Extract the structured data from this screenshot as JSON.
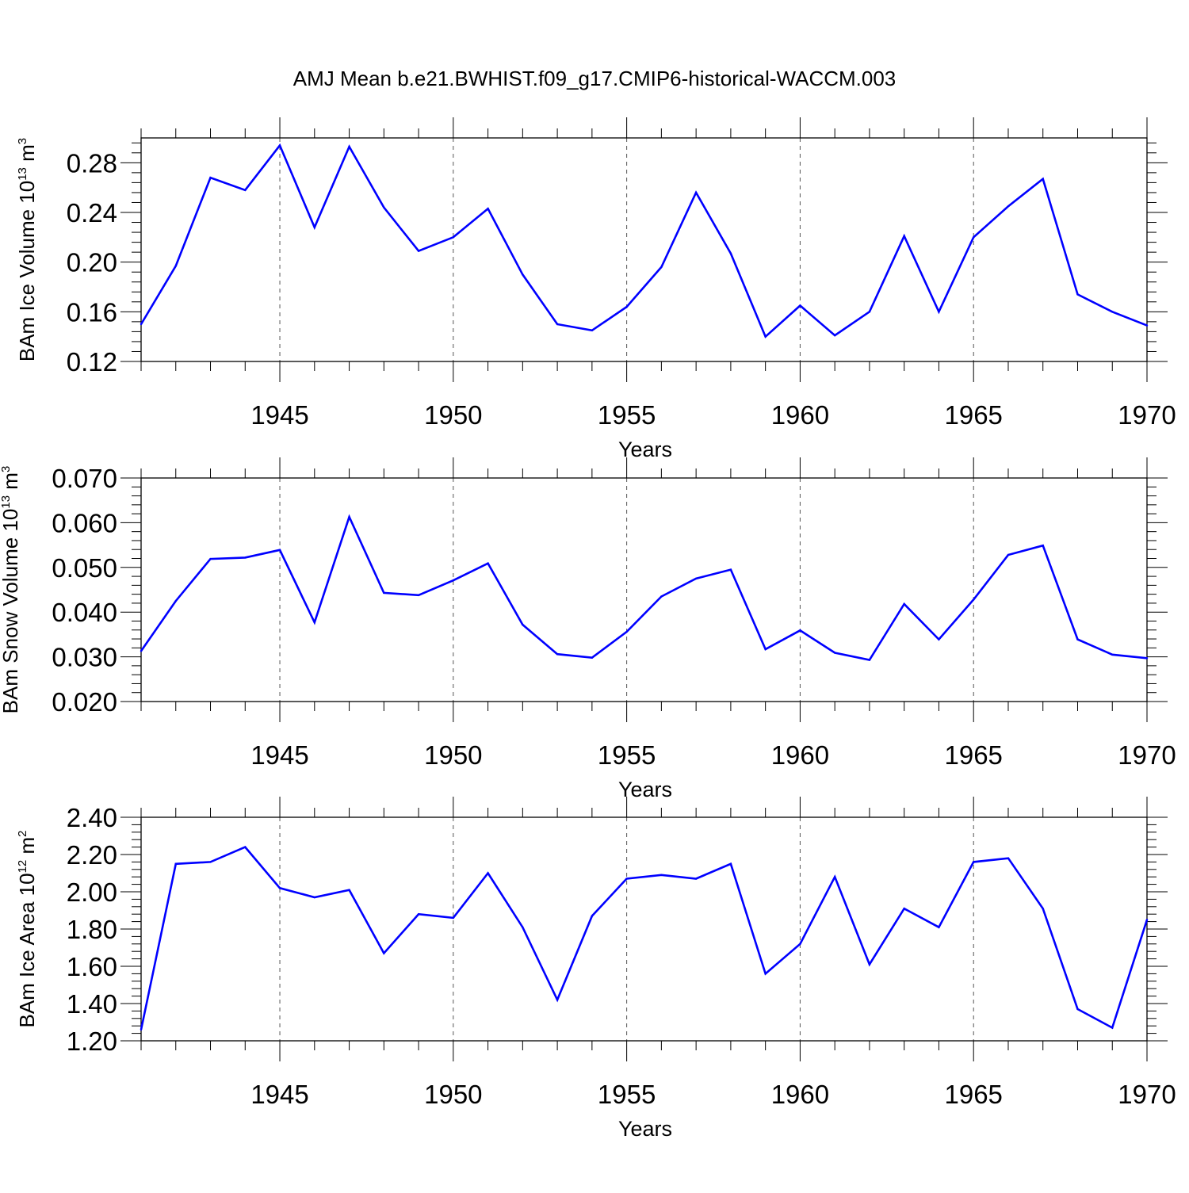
{
  "title": "AMJ Mean b.e21.BWHIST.f09_g17.CMIP6-historical-WACCM.003",
  "colors": {
    "line": "#0000ff",
    "axis": "#000000",
    "grid": "#555555"
  },
  "chart_data": [
    {
      "type": "line",
      "ylabel_text": "BAm Ice Volume 10",
      "ylabel_exp": "13",
      "ylabel_unit": " m",
      "ylabel_unit_exp": "3",
      "xlabel": "Years",
      "xlim": [
        1941,
        1970
      ],
      "ylim": [
        0.12,
        0.3
      ],
      "yticks": [
        0.12,
        0.16,
        0.2,
        0.24,
        0.28
      ],
      "yticklabels": [
        "0.12",
        "0.16",
        "0.20",
        "0.24",
        "0.28"
      ],
      "xticks": [
        1945,
        1950,
        1955,
        1960,
        1965,
        1970
      ],
      "xticklabels": [
        "1945",
        "1950",
        "1955",
        "1960",
        "1965",
        "1970"
      ],
      "grid": "vertical-dashed-at-major-x-ticks",
      "x": [
        1941,
        1942,
        1943,
        1944,
        1945,
        1946,
        1947,
        1948,
        1949,
        1950,
        1951,
        1952,
        1953,
        1954,
        1955,
        1956,
        1957,
        1958,
        1959,
        1960,
        1961,
        1962,
        1963,
        1964,
        1965,
        1966,
        1967,
        1968,
        1969,
        1970
      ],
      "values": [
        0.15,
        0.197,
        0.268,
        0.258,
        0.294,
        0.228,
        0.293,
        0.244,
        0.209,
        0.22,
        0.243,
        0.19,
        0.15,
        0.145,
        0.164,
        0.196,
        0.256,
        0.207,
        0.14,
        0.165,
        0.141,
        0.16,
        0.221,
        0.16,
        0.22,
        0.245,
        0.267,
        0.174,
        0.16,
        0.149
      ]
    },
    {
      "type": "line",
      "ylabel_text": "BAm Snow Volume 10",
      "ylabel_exp": "13",
      "ylabel_unit": " m",
      "ylabel_unit_exp": "3",
      "xlabel": "Years",
      "xlim": [
        1941,
        1970
      ],
      "ylim": [
        0.02,
        0.07
      ],
      "yticks": [
        0.02,
        0.03,
        0.04,
        0.05,
        0.06,
        0.07
      ],
      "yticklabels": [
        "0.020",
        "0.030",
        "0.040",
        "0.050",
        "0.060",
        "0.070"
      ],
      "xticks": [
        1945,
        1950,
        1955,
        1960,
        1965,
        1970
      ],
      "xticklabels": [
        "1945",
        "1950",
        "1955",
        "1960",
        "1965",
        "1970"
      ],
      "grid": "vertical-dashed-at-major-x-ticks",
      "x": [
        1941,
        1942,
        1943,
        1944,
        1945,
        1946,
        1947,
        1948,
        1949,
        1950,
        1951,
        1952,
        1953,
        1954,
        1955,
        1956,
        1957,
        1958,
        1959,
        1960,
        1961,
        1962,
        1963,
        1964,
        1965,
        1966,
        1967,
        1968,
        1969,
        1970
      ],
      "values": [
        0.0313,
        0.0425,
        0.0519,
        0.0522,
        0.0539,
        0.0377,
        0.0613,
        0.0443,
        0.0438,
        0.0471,
        0.0509,
        0.0372,
        0.0306,
        0.0298,
        0.0356,
        0.0435,
        0.0475,
        0.0495,
        0.0317,
        0.0359,
        0.0309,
        0.0293,
        0.0418,
        0.0339,
        0.0428,
        0.0528,
        0.0549,
        0.0339,
        0.0305,
        0.0297
      ]
    },
    {
      "type": "line",
      "ylabel_text": "BAm Ice Area 10",
      "ylabel_exp": "12",
      "ylabel_unit": " m",
      "ylabel_unit_exp": "2",
      "xlabel": "Years",
      "xlim": [
        1941,
        1970
      ],
      "ylim": [
        1.2,
        2.4
      ],
      "yticks": [
        1.2,
        1.4,
        1.6,
        1.8,
        2.0,
        2.2,
        2.4
      ],
      "yticklabels": [
        "1.20",
        "1.40",
        "1.60",
        "1.80",
        "2.00",
        "2.20",
        "2.40"
      ],
      "xticks": [
        1945,
        1950,
        1955,
        1960,
        1965,
        1970
      ],
      "xticklabels": [
        "1945",
        "1950",
        "1955",
        "1960",
        "1965",
        "1970"
      ],
      "grid": "vertical-dashed-at-major-x-ticks",
      "x": [
        1941,
        1942,
        1943,
        1944,
        1945,
        1946,
        1947,
        1948,
        1949,
        1950,
        1951,
        1952,
        1953,
        1954,
        1955,
        1956,
        1957,
        1958,
        1959,
        1960,
        1961,
        1962,
        1963,
        1964,
        1965,
        1966,
        1967,
        1968,
        1969,
        1970
      ],
      "values": [
        1.26,
        2.15,
        2.16,
        2.24,
        2.02,
        1.97,
        2.01,
        1.67,
        1.88,
        1.86,
        2.1,
        1.81,
        1.42,
        1.87,
        2.07,
        2.09,
        2.07,
        2.15,
        1.56,
        1.72,
        2.08,
        1.61,
        1.91,
        1.81,
        2.16,
        2.18,
        1.91,
        1.37,
        1.27,
        1.85
      ]
    }
  ]
}
